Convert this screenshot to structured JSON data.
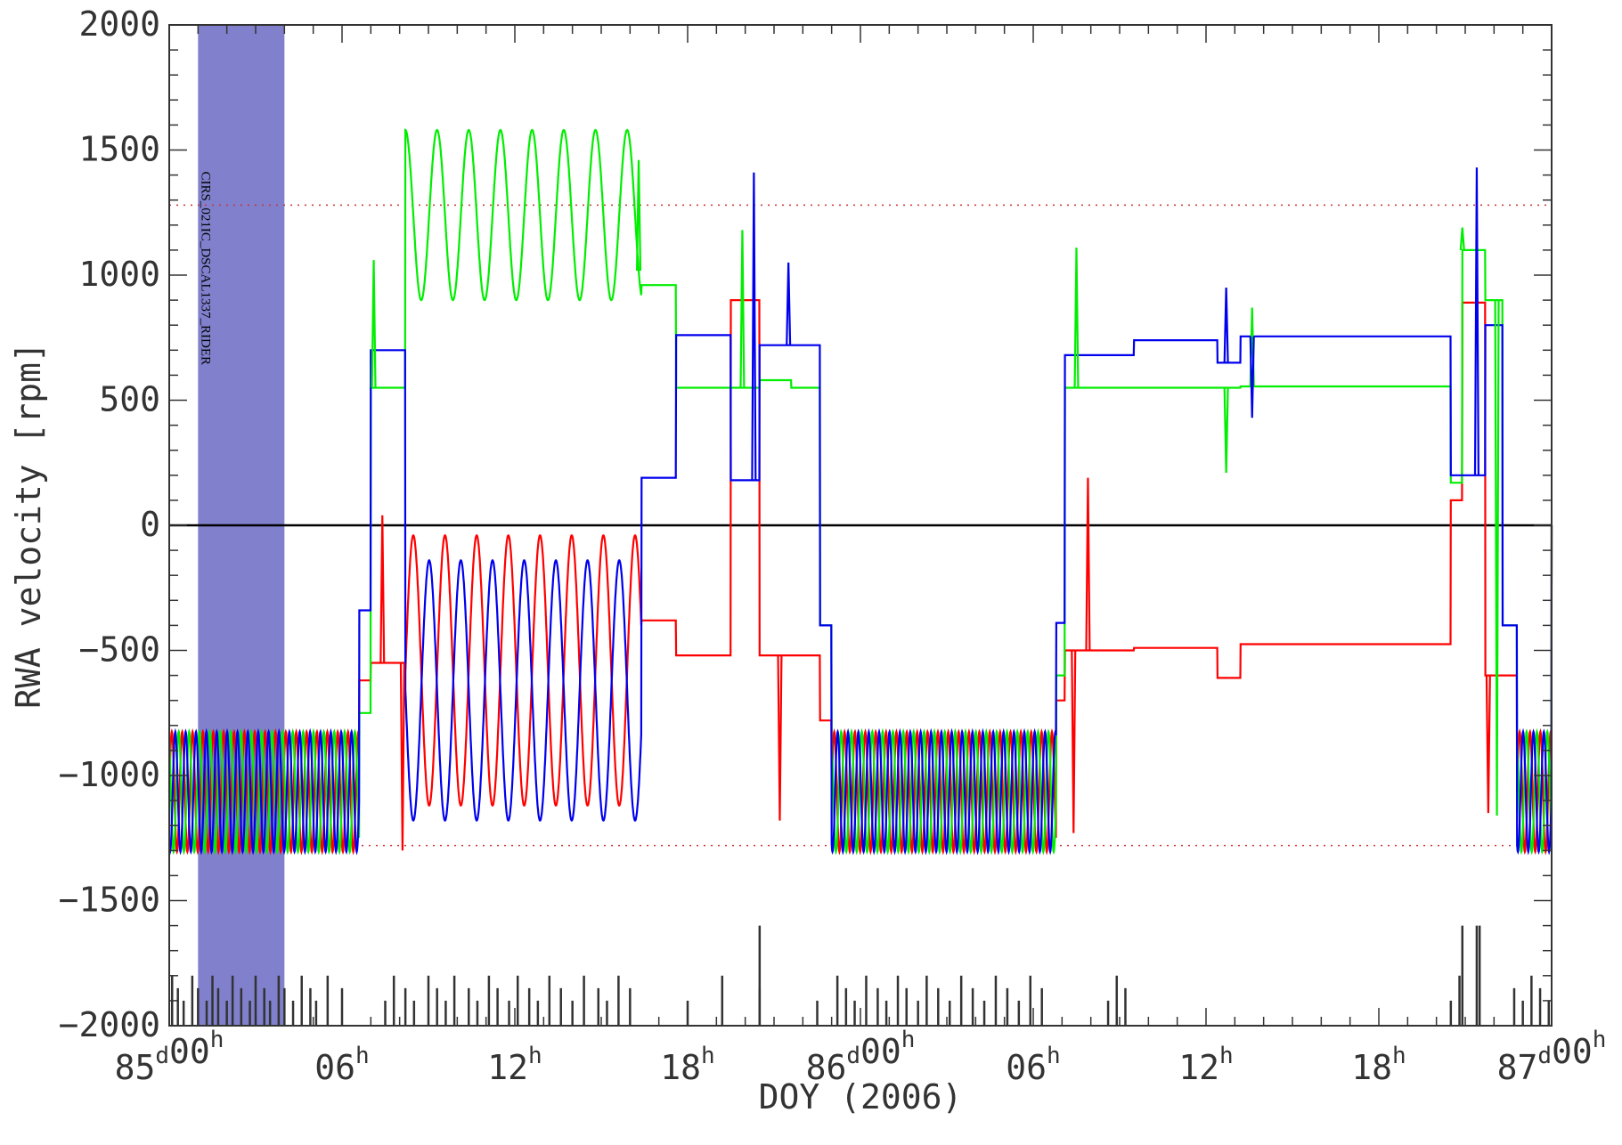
{
  "chart_data": {
    "type": "line",
    "title": "",
    "xlabel": "DOY (2006)",
    "ylabel": "RWA velocity [rpm]",
    "xlim_hours": [
      0,
      48
    ],
    "ylim": [
      -2000,
      2000
    ],
    "y_ticks": [
      2000,
      1500,
      1000,
      500,
      0,
      -500,
      -1000,
      -1500,
      -2000
    ],
    "y_tick_labels": [
      "2000",
      "1500",
      "1000",
      "500",
      "0",
      "−500",
      "−1000",
      "−1500",
      "−2000"
    ],
    "x_ticks": [
      {
        "hour": 0,
        "day": "85",
        "d": "d",
        "time": "00",
        "h": "h"
      },
      {
        "hour": 6,
        "day": "",
        "d": "",
        "time": "06",
        "h": "h"
      },
      {
        "hour": 12,
        "day": "",
        "d": "",
        "time": "12",
        "h": "h"
      },
      {
        "hour": 18,
        "day": "",
        "d": "",
        "time": "18",
        "h": "h"
      },
      {
        "hour": 24,
        "day": "86",
        "d": "d",
        "time": "00",
        "h": "h"
      },
      {
        "hour": 30,
        "day": "",
        "d": "",
        "time": "06",
        "h": "h"
      },
      {
        "hour": 36,
        "day": "",
        "d": "",
        "time": "12",
        "h": "h"
      },
      {
        "hour": 42,
        "day": "",
        "d": "",
        "time": "18",
        "h": "h"
      },
      {
        "hour": 48,
        "day": "87",
        "d": "d",
        "time": "00",
        "h": "h"
      }
    ],
    "reference_lines": {
      "zero": 0,
      "upper_dotted": 1280,
      "lower_dotted": -1280
    },
    "shaded_interval": {
      "start_hour": 1.0,
      "end_hour": 4.0,
      "label": "CIRS_021IC_DSCAL1337_RIDER",
      "color": "#8080cc"
    },
    "series_colors": {
      "red": "#ff0000",
      "green": "#00ee00",
      "blue": "#0000ee"
    },
    "segments": [
      {
        "t0": 0,
        "t1": 6.6,
        "mode": "osc",
        "period": 0.36,
        "center": -1065,
        "amp": 240
      },
      {
        "t0": 6.6,
        "t1": 7.0,
        "mode": "const",
        "r": -620,
        "g": -750,
        "b": -340
      },
      {
        "t0": 7.0,
        "t1": 8.2,
        "mode": "const",
        "r": -550,
        "g": 550,
        "b": 700
      },
      {
        "t0": 8.2,
        "t1": 16.4,
        "mode": "slew",
        "period": 1.1,
        "r_center": -580,
        "r_amp": 540,
        "b_center": -660,
        "b_amp": 520,
        "g_center": 1240,
        "g_amp": 340
      },
      {
        "t0": 16.4,
        "t1": 17.6,
        "mode": "const",
        "r": -380,
        "g": 960,
        "b": 190
      },
      {
        "t0": 17.6,
        "t1": 19.5,
        "mode": "const",
        "r": -520,
        "g": 550,
        "b": 760
      },
      {
        "t0": 19.5,
        "t1": 20.5,
        "mode": "const",
        "r": 900,
        "g": 550,
        "b": 180
      },
      {
        "t0": 20.5,
        "t1": 21.6,
        "mode": "const",
        "r": -520,
        "g": 580,
        "b": 720
      },
      {
        "t0": 21.6,
        "t1": 22.6,
        "mode": "const",
        "r": -520,
        "g": 550,
        "b": 720
      },
      {
        "t0": 22.6,
        "t1": 23.0,
        "mode": "const",
        "r": -780,
        "g": -400,
        "b": -400
      },
      {
        "t0": 23.0,
        "t1": 30.8,
        "mode": "osc",
        "period": 0.36,
        "center": -1065,
        "amp": 240
      },
      {
        "t0": 30.8,
        "t1": 31.1,
        "mode": "const",
        "r": -700,
        "g": -600,
        "b": -390
      },
      {
        "t0": 31.1,
        "t1": 33.5,
        "mode": "const",
        "r": -500,
        "g": 550,
        "b": 680
      },
      {
        "t0": 33.5,
        "t1": 36.4,
        "mode": "const",
        "r": -490,
        "g": 550,
        "b": 740
      },
      {
        "t0": 36.4,
        "t1": 37.2,
        "mode": "const",
        "r": -610,
        "g": 550,
        "b": 650
      },
      {
        "t0": 37.2,
        "t1": 44.5,
        "mode": "const",
        "r": -475,
        "g": 555,
        "b": 755
      },
      {
        "t0": 44.5,
        "t1": 44.9,
        "mode": "const",
        "r": 100,
        "g": 170,
        "b": 200
      },
      {
        "t0": 44.9,
        "t1": 45.7,
        "mode": "const",
        "r": 890,
        "g": 1100,
        "b": 200
      },
      {
        "t0": 45.7,
        "t1": 46.3,
        "mode": "const",
        "r": -600,
        "g": 900,
        "b": 800
      },
      {
        "t0": 46.3,
        "t1": 46.8,
        "mode": "const",
        "r": -600,
        "g": -400,
        "b": -400
      },
      {
        "t0": 46.8,
        "t1": 48.0,
        "mode": "osc",
        "period": 0.36,
        "center": -1065,
        "amp": 240
      }
    ],
    "spikes": [
      {
        "series": "g",
        "t": 7.1,
        "v": 1060
      },
      {
        "series": "r",
        "t": 7.4,
        "v": 40
      },
      {
        "series": "r",
        "t": 8.1,
        "v": -1300
      },
      {
        "series": "g",
        "t": 16.3,
        "v": 1460
      },
      {
        "series": "b",
        "t": 20.3,
        "v": 1410
      },
      {
        "series": "g",
        "t": 19.9,
        "v": 1180
      },
      {
        "series": "b",
        "t": 21.5,
        "v": 1050
      },
      {
        "series": "r",
        "t": 21.2,
        "v": -1180
      },
      {
        "series": "g",
        "t": 31.5,
        "v": 1110
      },
      {
        "series": "r",
        "t": 31.9,
        "v": 190
      },
      {
        "series": "r",
        "t": 31.4,
        "v": -1230
      },
      {
        "series": "b",
        "t": 36.7,
        "v": 950
      },
      {
        "series": "g",
        "t": 36.7,
        "v": 210
      },
      {
        "series": "g",
        "t": 37.6,
        "v": 870
      },
      {
        "series": "b",
        "t": 37.6,
        "v": 430
      },
      {
        "series": "b",
        "t": 45.4,
        "v": 1430
      },
      {
        "series": "g",
        "t": 44.9,
        "v": 1190
      },
      {
        "series": "r",
        "t": 45.8,
        "v": -1150
      },
      {
        "series": "g",
        "t": 46.1,
        "v": -1160
      }
    ],
    "bottom_ticks": {
      "short": [
        0.1,
        0.3,
        0.5,
        0.8,
        1.0,
        1.3,
        1.5,
        1.7,
        2.0,
        2.2,
        2.5,
        2.8,
        3.0,
        3.3,
        3.5,
        3.8,
        4.0,
        4.3,
        4.6,
        4.9,
        5.1,
        5.5,
        6.0,
        7.5,
        7.8,
        8.2,
        8.5,
        9.0,
        9.3,
        9.6,
        9.9,
        10.4,
        10.7,
        11.1,
        11.4,
        11.8,
        12.1,
        12.5,
        12.8,
        13.2,
        13.6,
        14.0,
        14.4,
        14.9,
        15.2,
        15.6,
        16.0,
        18.0,
        19.2,
        20.5,
        22.5,
        23.2,
        23.5,
        23.8,
        24.2,
        24.6,
        24.9,
        25.3,
        25.6,
        26.0,
        26.3,
        26.7,
        27.1,
        27.5,
        27.9,
        28.3,
        28.7,
        29.1,
        29.5,
        29.9,
        30.3,
        32.6,
        32.9,
        33.2,
        44.5,
        44.8,
        46.7,
        47.0,
        47.3,
        47.6,
        47.9
      ],
      "tall": [
        20.5,
        44.9,
        45.4,
        45.5
      ]
    }
  }
}
